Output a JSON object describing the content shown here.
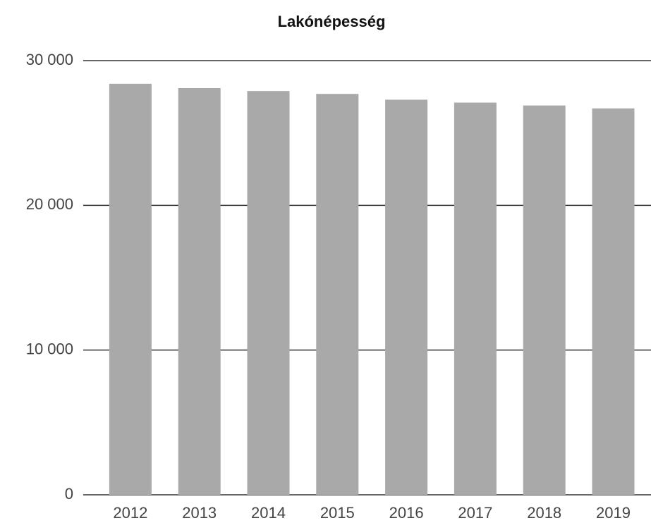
{
  "chart_data": {
    "type": "bar",
    "title": "Lakónépesség",
    "categories": [
      "2012",
      "2013",
      "2014",
      "2015",
      "2016",
      "2017",
      "2018",
      "2019"
    ],
    "values": [
      28400,
      28100,
      27900,
      27700,
      27300,
      27100,
      26900,
      26700
    ],
    "color": "#a9a9a9",
    "ylim": [
      0,
      30000
    ],
    "yticks": [
      0,
      {
        "value": 10000,
        "label": "10 000"
      },
      {
        "value": 20000,
        "label": "20 000"
      },
      {
        "value": 30000,
        "label": "30 000"
      }
    ],
    "grid": true
  }
}
